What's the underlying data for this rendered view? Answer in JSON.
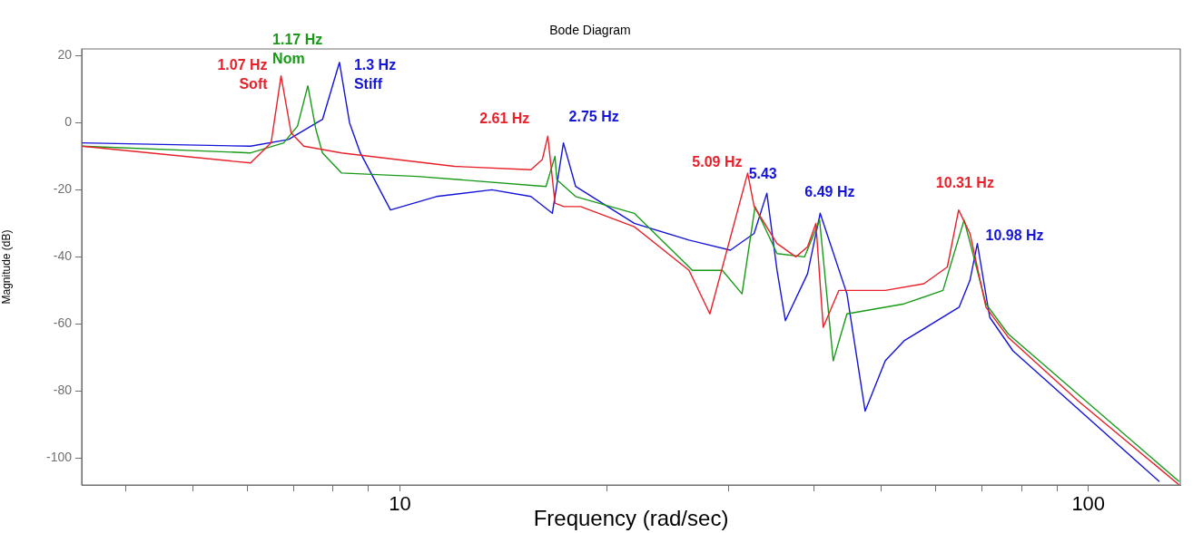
{
  "chart_data": {
    "type": "line",
    "title": "Bode Diagram",
    "xlabel": "Frequency (rad/sec)",
    "ylabel": "Magnitude (dB)",
    "log": "x",
    "xlim": [
      3.45,
      136
    ],
    "ylim": [
      -108,
      22
    ],
    "xticks": [
      {
        "value": 4,
        "label": null
      },
      {
        "value": 5,
        "label": null
      },
      {
        "value": 6,
        "label": null
      },
      {
        "value": 7,
        "label": null
      },
      {
        "value": 8,
        "label": null
      },
      {
        "value": 9,
        "label": null
      },
      10,
      {
        "value": 20,
        "label": null
      },
      {
        "value": 30,
        "label": null
      },
      {
        "value": 40,
        "label": null
      },
      {
        "value": 50,
        "label": null
      },
      {
        "value": 60,
        "label": null
      },
      {
        "value": 70,
        "label": null
      },
      {
        "value": 80,
        "label": null
      },
      {
        "value": 90,
        "label": null
      },
      100
    ],
    "yticks": [
      -100,
      -80,
      -60,
      -40,
      -20,
      0,
      20
    ],
    "grid": false,
    "legend": false,
    "series": [
      {
        "color": "#e8202a",
        "x": [
          3.45,
          6.07,
          6.5,
          6.72,
          6.95,
          7.25,
          8.23,
          12.0,
          15.5,
          16.1,
          16.4,
          16.8,
          17.3,
          18.3,
          21.9,
          26.3,
          28.2,
          32.0,
          32.7,
          35.3,
          37.6,
          39.1,
          40.2,
          41.2,
          43.4,
          50.7,
          57.7,
          62.4,
          64.8,
          67.3,
          71.0,
          76.5,
          96.7,
          135.5
        ],
        "values": [
          -7,
          -12,
          -6,
          14,
          -3,
          -7,
          -9,
          -13,
          -14,
          -11,
          -4,
          -24,
          -25,
          -25,
          -31,
          -44,
          -57,
          -15,
          -25,
          -36,
          -40,
          -37,
          -30,
          -61,
          -50,
          -50,
          -48,
          -43,
          -26,
          -33,
          -55,
          -64,
          -83,
          -108
        ]
      },
      {
        "color": "#189a18",
        "x": [
          3.45,
          6.07,
          6.78,
          7.1,
          7.35,
          7.55,
          7.72,
          8.23,
          10.6,
          16.3,
          16.8,
          16.9,
          18.0,
          21.9,
          26.6,
          29.4,
          31.4,
          32.8,
          35.3,
          38.7,
          40.7,
          42.6,
          44.6,
          54.0,
          61.5,
          66.0,
          71.0,
          76.5,
          135.5
        ],
        "values": [
          -7,
          -9,
          -6,
          -1,
          11,
          -2,
          -9,
          -15,
          -16,
          -19,
          -10,
          -17,
          -22,
          -27,
          -44,
          -44,
          -51,
          -25,
          -39,
          -40,
          -29,
          -71,
          -57,
          -54,
          -50,
          -29,
          -54,
          -63,
          -107
        ]
      },
      {
        "color": "#1414d8",
        "x": [
          3.45,
          6.07,
          6.89,
          7.72,
          8.17,
          8.45,
          8.76,
          9.69,
          11.3,
          13.6,
          15.5,
          16.65,
          17.28,
          18.0,
          21.9,
          26.3,
          30.2,
          32.7,
          34.12,
          35.3,
          36.3,
          39.1,
          40.78,
          44.6,
          47.4,
          50.7,
          54.0,
          64.9,
          67.3,
          68.99,
          71.9,
          77.7,
          126.8
        ],
        "values": [
          -6,
          -7,
          -5,
          1,
          18,
          0,
          -9,
          -26,
          -22,
          -20,
          -22,
          -27,
          -6,
          -19,
          -30,
          -35,
          -38,
          -33,
          -21,
          -44,
          -59,
          -45,
          -27,
          -51,
          -86,
          -71,
          -65,
          -55,
          -47,
          -36,
          -58,
          -68,
          -107
        ]
      }
    ],
    "annotations": [
      {
        "text": "1.07 Hz\nSoft",
        "x": 6.72,
        "y": 14
      },
      {
        "text": "1.17 Hz\nNom",
        "x": 7.35,
        "y": 11
      },
      {
        "text": "1.3 Hz\nStiff",
        "x": 8.17,
        "y": 18
      },
      {
        "text": "2.61 Hz",
        "x": 16.4,
        "y": -4
      },
      {
        "text": "2.75 Hz",
        "x": 17.28,
        "y": -6
      },
      {
        "text": "5.09 Hz",
        "x": 32.0,
        "y": -15
      },
      {
        "text": "5.43",
        "x": 34.12,
        "y": -21
      },
      {
        "text": "6.49 Hz",
        "x": 40.78,
        "y": -27
      },
      {
        "text": "10.31 Hz",
        "x": 64.8,
        "y": -26
      },
      {
        "text": "10.98 Hz",
        "x": 68.99,
        "y": -36
      }
    ]
  }
}
